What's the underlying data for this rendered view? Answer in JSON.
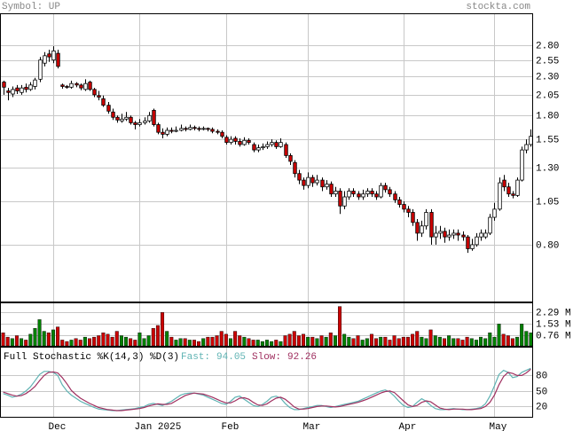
{
  "chart_data": [
    {
      "type": "candlestick",
      "title": "Symbol: UP",
      "source": "stockta.com",
      "log": true,
      "grid": true,
      "up_color": "#ffffff",
      "down_color": "#cc0000",
      "ylim": [
        0.56,
        3.4
      ],
      "yticks": [
        {
          "value": 2.8,
          "label": "2.80"
        },
        2.55,
        {
          "value": 2.3,
          "label": "2.30"
        },
        2.05,
        {
          "value": 1.8,
          "label": "1.80"
        },
        1.55,
        {
          "value": 1.3,
          "label": "1.30"
        },
        1.05,
        {
          "value": 0.8,
          "label": "0.80"
        }
      ],
      "xlim": [
        -0.5,
        116.5
      ],
      "xticks": [
        {
          "value": 11,
          "label": "Dec"
        },
        {
          "value": 30,
          "label": "Jan 2025"
        },
        {
          "value": 49,
          "label": "Feb"
        },
        {
          "value": 67,
          "label": "Mar"
        },
        {
          "value": 88,
          "label": "Apr"
        },
        {
          "value": 108,
          "label": "May"
        }
      ],
      "ohlc": [
        [
          2.22,
          2.24,
          2.05,
          2.15
        ],
        [
          2.1,
          2.14,
          1.98,
          2.08
        ],
        [
          2.06,
          2.16,
          2.02,
          2.12
        ],
        [
          2.14,
          2.18,
          2.06,
          2.1
        ],
        [
          2.08,
          2.18,
          2.05,
          2.14
        ],
        [
          2.15,
          2.2,
          2.08,
          2.12
        ],
        [
          2.12,
          2.22,
          2.1,
          2.18
        ],
        [
          2.16,
          2.28,
          2.12,
          2.25
        ],
        [
          2.26,
          2.6,
          2.22,
          2.55
        ],
        [
          2.5,
          2.68,
          2.45,
          2.62
        ],
        [
          2.65,
          2.72,
          2.52,
          2.6
        ],
        [
          2.55,
          2.78,
          2.5,
          2.7
        ],
        [
          2.66,
          2.72,
          2.42,
          2.45
        ],
        [
          2.18,
          2.2,
          2.13,
          2.16
        ],
        [
          2.16,
          2.18,
          2.13,
          2.15
        ],
        [
          2.15,
          2.24,
          2.13,
          2.2
        ],
        [
          2.2,
          2.22,
          2.15,
          2.18
        ],
        [
          2.18,
          2.2,
          2.11,
          2.14
        ],
        [
          2.12,
          2.26,
          2.1,
          2.2
        ],
        [
          2.22,
          2.24,
          2.1,
          2.12
        ],
        [
          2.12,
          2.14,
          2.02,
          2.05
        ],
        [
          2.04,
          2.1,
          1.98,
          2.02
        ],
        [
          2.0,
          2.04,
          1.9,
          1.92
        ],
        [
          1.92,
          1.96,
          1.82,
          1.85
        ],
        [
          1.84,
          1.88,
          1.75,
          1.78
        ],
        [
          1.78,
          1.8,
          1.72,
          1.75
        ],
        [
          1.74,
          1.82,
          1.72,
          1.76
        ],
        [
          1.76,
          1.84,
          1.74,
          1.78
        ],
        [
          1.78,
          1.8,
          1.7,
          1.72
        ],
        [
          1.72,
          1.74,
          1.65,
          1.7
        ],
        [
          1.7,
          1.76,
          1.68,
          1.72
        ],
        [
          1.72,
          1.78,
          1.7,
          1.74
        ],
        [
          1.74,
          1.84,
          1.72,
          1.8
        ],
        [
          1.86,
          1.88,
          1.68,
          1.7
        ],
        [
          1.7,
          1.72,
          1.6,
          1.62
        ],
        [
          1.62,
          1.66,
          1.56,
          1.6
        ],
        [
          1.6,
          1.67,
          1.58,
          1.64
        ],
        [
          1.64,
          1.67,
          1.61,
          1.63
        ],
        [
          1.63,
          1.68,
          1.62,
          1.64
        ],
        [
          1.64,
          1.7,
          1.63,
          1.66
        ],
        [
          1.66,
          1.68,
          1.63,
          1.65
        ],
        [
          1.65,
          1.7,
          1.64,
          1.67
        ],
        [
          1.67,
          1.69,
          1.64,
          1.66
        ],
        [
          1.66,
          1.68,
          1.63,
          1.65
        ],
        [
          1.65,
          1.68,
          1.64,
          1.66
        ],
        [
          1.66,
          1.67,
          1.63,
          1.65
        ],
        [
          1.65,
          1.67,
          1.61,
          1.63
        ],
        [
          1.63,
          1.65,
          1.6,
          1.62
        ],
        [
          1.62,
          1.64,
          1.56,
          1.58
        ],
        [
          1.57,
          1.59,
          1.5,
          1.52
        ],
        [
          1.52,
          1.58,
          1.5,
          1.55
        ],
        [
          1.56,
          1.58,
          1.5,
          1.53
        ],
        [
          1.53,
          1.56,
          1.48,
          1.5
        ],
        [
          1.5,
          1.57,
          1.49,
          1.54
        ],
        [
          1.54,
          1.56,
          1.5,
          1.52
        ],
        [
          1.5,
          1.52,
          1.43,
          1.45
        ],
        [
          1.45,
          1.5,
          1.43,
          1.47
        ],
        [
          1.47,
          1.51,
          1.45,
          1.48
        ],
        [
          1.48,
          1.53,
          1.46,
          1.5
        ],
        [
          1.5,
          1.55,
          1.48,
          1.52
        ],
        [
          1.52,
          1.54,
          1.46,
          1.48
        ],
        [
          1.48,
          1.56,
          1.47,
          1.52
        ],
        [
          1.5,
          1.52,
          1.38,
          1.4
        ],
        [
          1.4,
          1.42,
          1.32,
          1.35
        ],
        [
          1.34,
          1.36,
          1.22,
          1.25
        ],
        [
          1.25,
          1.28,
          1.17,
          1.2
        ],
        [
          1.2,
          1.22,
          1.13,
          1.16
        ],
        [
          1.16,
          1.26,
          1.14,
          1.22
        ],
        [
          1.22,
          1.24,
          1.15,
          1.18
        ],
        [
          1.18,
          1.24,
          1.16,
          1.2
        ],
        [
          1.2,
          1.22,
          1.12,
          1.15
        ],
        [
          1.15,
          1.2,
          1.13,
          1.17
        ],
        [
          1.17,
          1.19,
          1.08,
          1.1
        ],
        [
          1.1,
          1.15,
          1.08,
          1.12
        ],
        [
          1.12,
          1.14,
          0.97,
          1.02
        ],
        [
          1.02,
          1.12,
          1.0,
          1.08
        ],
        [
          1.08,
          1.14,
          1.06,
          1.12
        ],
        [
          1.12,
          1.14,
          1.08,
          1.1
        ],
        [
          1.1,
          1.12,
          1.06,
          1.08
        ],
        [
          1.08,
          1.13,
          1.06,
          1.1
        ],
        [
          1.1,
          1.14,
          1.08,
          1.12
        ],
        [
          1.12,
          1.14,
          1.08,
          1.1
        ],
        [
          1.1,
          1.12,
          1.06,
          1.08
        ],
        [
          1.08,
          1.18,
          1.07,
          1.16
        ],
        [
          1.16,
          1.18,
          1.11,
          1.13
        ],
        [
          1.13,
          1.15,
          1.08,
          1.1
        ],
        [
          1.1,
          1.12,
          1.04,
          1.06
        ],
        [
          1.06,
          1.08,
          1.01,
          1.03
        ],
        [
          1.03,
          1.05,
          0.98,
          1.0
        ],
        [
          1.0,
          1.02,
          0.95,
          0.98
        ],
        [
          0.98,
          1.0,
          0.9,
          0.92
        ],
        [
          0.92,
          0.94,
          0.82,
          0.86
        ],
        [
          0.86,
          0.93,
          0.84,
          0.9
        ],
        [
          0.9,
          1.0,
          0.88,
          0.98
        ],
        [
          0.98,
          1.0,
          0.8,
          0.84
        ],
        [
          0.84,
          0.9,
          0.8,
          0.86
        ],
        [
          0.86,
          0.9,
          0.83,
          0.87
        ],
        [
          0.87,
          0.89,
          0.81,
          0.84
        ],
        [
          0.84,
          0.88,
          0.82,
          0.85
        ],
        [
          0.85,
          0.88,
          0.83,
          0.86
        ],
        [
          0.86,
          0.88,
          0.82,
          0.85
        ],
        [
          0.85,
          0.87,
          0.82,
          0.84
        ],
        [
          0.84,
          0.85,
          0.76,
          0.78
        ],
        [
          0.78,
          0.83,
          0.77,
          0.8
        ],
        [
          0.8,
          0.86,
          0.79,
          0.84
        ],
        [
          0.84,
          0.88,
          0.82,
          0.86
        ],
        [
          0.84,
          0.88,
          0.83,
          0.86
        ],
        [
          0.86,
          0.97,
          0.85,
          0.95
        ],
        [
          0.95,
          1.04,
          0.93,
          1.0
        ],
        [
          1.0,
          1.22,
          0.99,
          1.18
        ],
        [
          1.2,
          1.24,
          1.12,
          1.15
        ],
        [
          1.15,
          1.18,
          1.08,
          1.1
        ],
        [
          1.1,
          1.12,
          1.07,
          1.09
        ],
        [
          1.09,
          1.22,
          1.08,
          1.2
        ],
        [
          1.2,
          1.48,
          1.19,
          1.45
        ],
        [
          1.45,
          1.55,
          1.42,
          1.5
        ],
        [
          1.5,
          1.65,
          1.48,
          1.58
        ]
      ]
    },
    {
      "type": "volume",
      "up_color": "#008000",
      "down_color": "#cc0000",
      "ylim": [
        0,
        2.92
      ],
      "yticks": [
        {
          "value": 2.29,
          "label": "2.29 M"
        },
        {
          "value": 1.53,
          "label": "1.53 M"
        },
        {
          "value": 0.76,
          "label": "0.76 M"
        }
      ],
      "values": [
        0.9,
        0.6,
        0.5,
        0.7,
        0.5,
        0.4,
        0.8,
        1.2,
        1.8,
        1.0,
        0.9,
        1.1,
        1.3,
        0.4,
        0.3,
        0.4,
        0.5,
        0.4,
        0.6,
        0.5,
        0.6,
        0.7,
        0.9,
        0.8,
        0.6,
        1.0,
        0.7,
        0.6,
        0.5,
        0.4,
        0.9,
        0.5,
        0.7,
        1.2,
        1.4,
        2.29,
        1.0,
        0.6,
        0.4,
        0.5,
        0.5,
        0.4,
        0.4,
        0.3,
        0.5,
        0.6,
        0.6,
        0.7,
        1.0,
        0.8,
        0.5,
        1.0,
        0.7,
        0.6,
        0.5,
        0.4,
        0.4,
        0.3,
        0.4,
        0.3,
        0.4,
        0.3,
        0.7,
        0.8,
        1.0,
        0.7,
        0.8,
        0.6,
        0.6,
        0.5,
        0.7,
        0.6,
        0.9,
        0.7,
        2.7,
        0.8,
        0.6,
        0.5,
        0.7,
        0.4,
        0.5,
        0.8,
        0.5,
        0.6,
        0.6,
        0.4,
        0.7,
        0.5,
        0.6,
        0.6,
        0.8,
        1.0,
        0.6,
        0.5,
        1.1,
        0.7,
        0.6,
        0.5,
        0.7,
        0.5,
        0.5,
        0.4,
        0.6,
        0.5,
        0.4,
        0.6,
        0.5,
        0.9,
        0.6,
        1.5,
        0.8,
        0.7,
        0.5,
        0.6,
        1.5,
        1.0,
        0.9
      ]
    },
    {
      "type": "stochastic",
      "title": "Full Stochastic %K(14,3) %D(3)",
      "ylim": [
        0,
        134
      ],
      "yticks": [
        80,
        50,
        20
      ],
      "series": [
        {
          "name": "Fast:",
          "color": "#5fb3b3",
          "values": [
            45,
            42,
            38,
            40,
            44,
            50,
            58,
            70,
            82,
            88,
            88,
            86,
            80,
            62,
            50,
            42,
            36,
            30,
            26,
            22,
            18,
            15,
            14,
            13,
            12,
            12,
            13,
            14,
            15,
            16,
            18,
            20,
            24,
            26,
            24,
            22,
            26,
            30,
            36,
            42,
            45,
            46,
            46,
            44,
            42,
            38,
            34,
            30,
            26,
            24,
            30,
            38,
            40,
            34,
            28,
            22,
            20,
            24,
            30,
            38,
            40,
            36,
            26,
            18,
            14,
            14,
            16,
            18,
            20,
            22,
            22,
            20,
            18,
            20,
            22,
            24,
            26,
            28,
            30,
            34,
            38,
            42,
            46,
            50,
            52,
            48,
            40,
            30,
            22,
            18,
            20,
            28,
            35,
            30,
            22,
            16,
            14,
            14,
            15,
            16,
            15,
            14,
            14,
            15,
            16,
            18,
            25,
            40,
            60,
            82,
            90,
            86,
            76,
            78,
            86,
            90,
            94.05
          ]
        },
        {
          "name": "Slow:",
          "color": "#a03060",
          "values": [
            48,
            45,
            42,
            40,
            41,
            45,
            51,
            59,
            70,
            80,
            86,
            87,
            85,
            76,
            64,
            51,
            43,
            36,
            31,
            26,
            22,
            18,
            16,
            14,
            13,
            12,
            12,
            13,
            14,
            15,
            16,
            18,
            21,
            23,
            25,
            24,
            24,
            26,
            31,
            36,
            41,
            44,
            46,
            45,
            44,
            41,
            38,
            34,
            30,
            27,
            27,
            31,
            36,
            37,
            34,
            28,
            23,
            22,
            25,
            31,
            36,
            38,
            34,
            27,
            19,
            15,
            15,
            16,
            18,
            20,
            21,
            21,
            20,
            19,
            20,
            22,
            24,
            26,
            28,
            31,
            34,
            38,
            42,
            46,
            49,
            50,
            47,
            39,
            31,
            23,
            20,
            22,
            28,
            31,
            29,
            23,
            17,
            15,
            14,
            15,
            15,
            15,
            14,
            14,
            15,
            16,
            20,
            28,
            42,
            62,
            78,
            86,
            84,
            80,
            80,
            85,
            92.26
          ]
        }
      ]
    }
  ]
}
